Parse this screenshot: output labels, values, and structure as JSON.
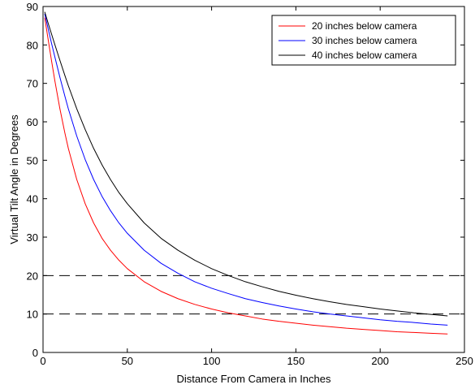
{
  "chart_data": {
    "type": "line",
    "title": "",
    "xlabel": "Distance From Camera in Inches",
    "ylabel": "Virtual Tilt Angle in Degrees",
    "xlim": [
      0,
      250
    ],
    "ylim": [
      0,
      90
    ],
    "xticks": [
      "0",
      "50",
      "100",
      "150",
      "200",
      "250"
    ],
    "yticks": [
      "0",
      "10",
      "20",
      "30",
      "40",
      "50",
      "60",
      "70",
      "80",
      "90"
    ],
    "grid": false,
    "legend_position": "top-right",
    "x": [
      1,
      3,
      5,
      7,
      10,
      13,
      15,
      20,
      25,
      30,
      35,
      40,
      45,
      50,
      60,
      70,
      80,
      90,
      100,
      110,
      120,
      130,
      140,
      150,
      160,
      170,
      180,
      190,
      200,
      210,
      220,
      230,
      240
    ],
    "series": [
      {
        "name": "20 inches below camera",
        "color": "#ff0000",
        "values": [
          87.1,
          81.5,
          76.0,
          70.7,
          63.4,
          57.0,
          53.1,
          45.0,
          38.7,
          33.7,
          29.7,
          26.6,
          24.0,
          21.8,
          18.4,
          15.9,
          14.0,
          12.5,
          11.3,
          10.3,
          9.5,
          8.7,
          8.1,
          7.6,
          7.1,
          6.7,
          6.3,
          6.0,
          5.7,
          5.4,
          5.2,
          5.0,
          4.8
        ]
      },
      {
        "name": "30 inches below camera",
        "color": "#0000ff",
        "values": [
          88.1,
          84.3,
          80.5,
          76.9,
          71.6,
          66.6,
          63.4,
          56.3,
          50.2,
          45.0,
          40.6,
          36.9,
          33.7,
          31.0,
          26.6,
          23.2,
          20.6,
          18.4,
          16.7,
          15.3,
          14.0,
          13.0,
          12.1,
          11.3,
          10.6,
          10.0,
          9.5,
          9.0,
          8.5,
          8.1,
          7.8,
          7.4,
          7.1
        ]
      },
      {
        "name": "40 inches below camera",
        "color": "#000000",
        "values": [
          88.6,
          85.7,
          82.9,
          80.1,
          76.0,
          72.0,
          69.4,
          63.4,
          58.0,
          53.1,
          48.8,
          45.0,
          41.6,
          38.7,
          33.7,
          29.7,
          26.6,
          24.0,
          21.8,
          20.0,
          18.4,
          17.1,
          15.9,
          14.9,
          14.0,
          13.2,
          12.5,
          11.9,
          11.3,
          10.8,
          10.3,
          9.9,
          9.5
        ]
      }
    ],
    "reference_lines": [
      {
        "y": 20,
        "style": "dashed",
        "color": "#000000"
      },
      {
        "y": 10,
        "style": "dashed",
        "color": "#000000"
      }
    ]
  }
}
